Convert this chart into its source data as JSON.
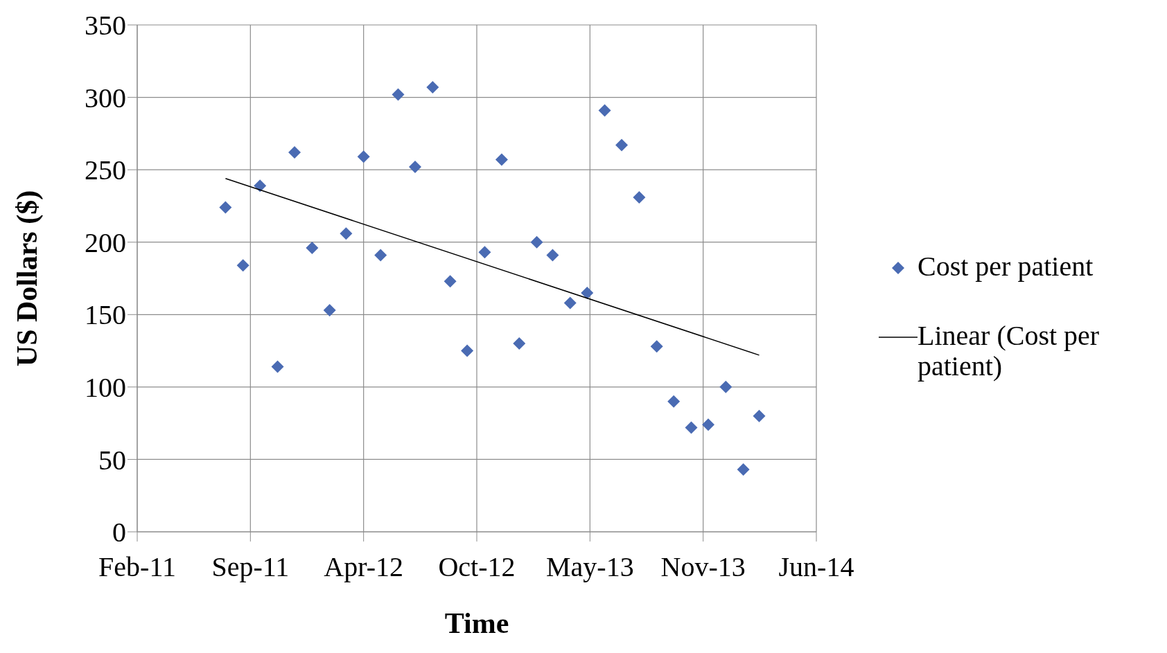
{
  "chart_data": {
    "type": "scatter",
    "xlabel": "Time",
    "ylabel": "US Dollars ($)",
    "xlim": [
      "2011-02-26",
      "2014-06-10"
    ],
    "xticks": [
      {
        "value": "2011-02-26",
        "label": "Feb-11"
      },
      {
        "value": "2011-09-14",
        "label": "Sep-11"
      },
      {
        "value": "2012-04-01",
        "label": "Apr-12"
      },
      {
        "value": "2012-10-18",
        "label": "Oct-12"
      },
      {
        "value": "2013-05-06",
        "label": "May-13"
      },
      {
        "value": "2013-11-22",
        "label": "Nov-13"
      },
      {
        "value": "2014-06-10",
        "label": "Jun-14"
      }
    ],
    "ylim": [
      0,
      350
    ],
    "yticks": [
      0,
      50,
      100,
      150,
      200,
      250,
      300,
      350
    ],
    "grid": true,
    "legend": "right",
    "marker": "diamond",
    "series": [
      {
        "name": "Cost per patient",
        "color": "#4a6bb3",
        "x": [
          "2011-08-01",
          "2011-09-01",
          "2011-10-01",
          "2011-11-01",
          "2011-12-01",
          "2012-01-01",
          "2012-02-01",
          "2012-03-01",
          "2012-04-01",
          "2012-05-01",
          "2012-06-01",
          "2012-07-01",
          "2012-08-01",
          "2012-09-01",
          "2012-10-01",
          "2012-11-01",
          "2012-12-01",
          "2013-01-01",
          "2013-02-01",
          "2013-03-01",
          "2013-04-01",
          "2013-05-01",
          "2013-06-01",
          "2013-07-01",
          "2013-08-01",
          "2013-09-01",
          "2013-10-01",
          "2013-11-01",
          "2013-12-01",
          "2014-01-01",
          "2014-02-01",
          "2014-03-01"
        ],
        "values": [
          224,
          184,
          239,
          114,
          262,
          196,
          153,
          206,
          259,
          191,
          302,
          252,
          307,
          173,
          125,
          193,
          257,
          130,
          200,
          191,
          158,
          165,
          291,
          267,
          231,
          128,
          90,
          72,
          74,
          100,
          43,
          80
        ]
      },
      {
        "name": "Linear (Cost per patient)",
        "type": "line",
        "color": "#000000",
        "marker": "none",
        "x": [
          "2011-08-01",
          "2014-03-01"
        ],
        "values": [
          244,
          122
        ]
      }
    ]
  }
}
